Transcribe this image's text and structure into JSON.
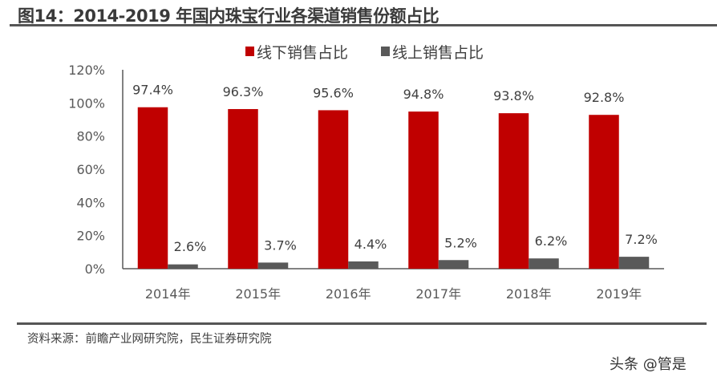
{
  "title": "图14：2014-2019 年国内珠宝行业各渠道销售份额占比",
  "source": "资料来源：前瞻产业网研究院，民生证券研究院",
  "watermark": "头条 @管是",
  "chart_data": {
    "type": "bar",
    "categories": [
      "2014年",
      "2015年",
      "2016年",
      "2017年",
      "2018年",
      "2019年"
    ],
    "series": [
      {
        "name": "线下销售占比",
        "color": "#C00000",
        "values": [
          97.4,
          96.3,
          95.6,
          94.8,
          93.8,
          92.8
        ],
        "labels": [
          "97.4%",
          "96.3%",
          "95.6%",
          "94.8%",
          "93.8%",
          "92.8%"
        ]
      },
      {
        "name": "线上销售占比",
        "color": "#595959",
        "values": [
          2.6,
          3.7,
          4.4,
          5.2,
          6.2,
          7.2
        ],
        "labels": [
          "2.6%",
          "3.7%",
          "4.4%",
          "5.2%",
          "6.2%",
          "7.2%"
        ]
      }
    ],
    "ylim": [
      0,
      120
    ],
    "yticks": [
      "0%",
      "20%",
      "40%",
      "60%",
      "80%",
      "100%",
      "120%"
    ],
    "legend": "top",
    "grid": false
  }
}
